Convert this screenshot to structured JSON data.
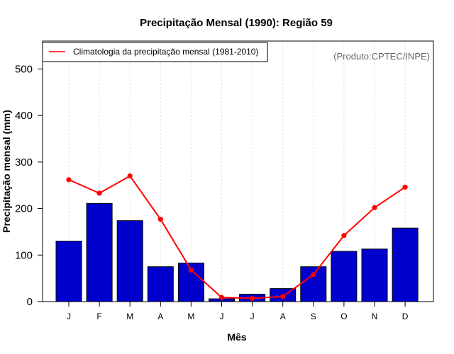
{
  "colors": {
    "bar_fill": "#0000cc",
    "bar_stroke": "#000000",
    "line": "#ff0000",
    "grid": "#dddddd",
    "credit": "#666666"
  },
  "chart_data": {
    "type": "bar",
    "title": "Precipitação Mensal (1990): Região 59",
    "xlabel": "Mês",
    "ylabel": "Precipitação mensal (mm)",
    "credit": "(Produto:CPTEC/INPE)",
    "categories": [
      "J",
      "F",
      "M",
      "A",
      "M",
      "J",
      "J",
      "A",
      "S",
      "O",
      "N",
      "D"
    ],
    "ylim": [
      0,
      560
    ],
    "yticks": [
      0,
      100,
      200,
      300,
      400,
      500
    ],
    "grid": "vertical dotted",
    "legend_position": "top-left",
    "series": [
      {
        "name": "Precipitação mensal (1990)",
        "type": "bar",
        "values": [
          130,
          211,
          174,
          75,
          83,
          6,
          16,
          28,
          75,
          108,
          113,
          158
        ]
      },
      {
        "name": "Climatologia da precipitação mensal (1981-2010)",
        "type": "line",
        "values": [
          262,
          233,
          270,
          177,
          68,
          9,
          7,
          11,
          58,
          142,
          202,
          246
        ]
      }
    ]
  }
}
